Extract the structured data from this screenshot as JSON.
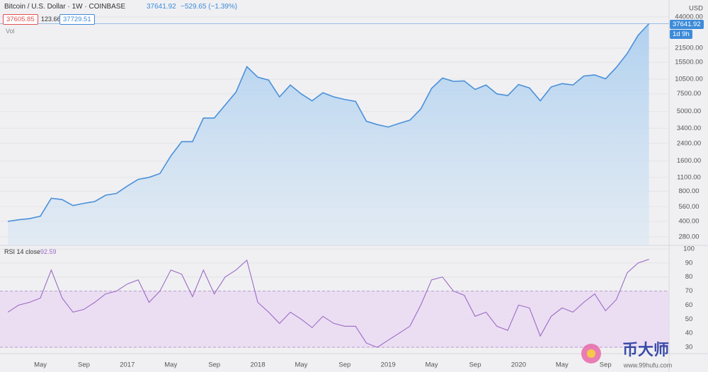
{
  "header": {
    "symbol": "Bitcoin / U.S. Dollar · 1W · COINBASE",
    "change": "−529.65 (−1.39%)",
    "bid": 37605.85,
    "spread": 123.66,
    "ask": 37729.51,
    "volume_label": "Vol",
    "countdown": "1d 9h",
    "currency": "USD"
  },
  "watermark": {
    "brand": "币大师",
    "url": "www.99hufu.com"
  },
  "chart_data": [
    {
      "type": "area",
      "log_scale": true,
      "color": "#4a90d9",
      "categories": [
        null,
        null,
        null,
        "May",
        null,
        null,
        null,
        "Sep",
        null,
        null,
        null,
        "2017",
        null,
        null,
        null,
        "May",
        null,
        null,
        null,
        "Sep",
        null,
        null,
        null,
        "2018",
        null,
        null,
        null,
        "May",
        null,
        null,
        null,
        "Sep",
        null,
        null,
        null,
        "2019",
        null,
        null,
        null,
        "May",
        null,
        null,
        null,
        "Sep",
        null,
        null,
        null,
        "2020",
        null,
        null,
        null,
        "May",
        null,
        null,
        null,
        "Sep",
        null,
        null,
        null,
        null
      ],
      "values": [
        400,
        415,
        425,
        450,
        680,
        660,
        575,
        605,
        630,
        730,
        760,
        900,
        1050,
        1100,
        1200,
        1800,
        2500,
        2500,
        4300,
        4300,
        5800,
        7800,
        14000,
        11000,
        10300,
        7000,
        9200,
        7500,
        6400,
        7700,
        7000,
        6600,
        6300,
        4000,
        3700,
        3500,
        3800,
        4100,
        5300,
        8500,
        10800,
        10000,
        10100,
        8300,
        9200,
        7500,
        7200,
        9300,
        8600,
        6400,
        8800,
        9500,
        9200,
        11300,
        11600,
        10600,
        13800,
        19000,
        28900,
        37641.92
      ],
      "ylim": [
        230,
        57000
      ],
      "yticks": [
        {
          "value": 280,
          "label": "280.00"
        },
        {
          "value": 400,
          "label": "400.00"
        },
        {
          "value": 560,
          "label": "560.00"
        },
        {
          "value": 800,
          "label": "800.00"
        },
        {
          "value": 1100,
          "label": "1100.00"
        },
        {
          "value": 1600,
          "label": "1600.00"
        },
        {
          "value": 2400,
          "label": "2400.00"
        },
        {
          "value": 3400,
          "label": "3400.00"
        },
        {
          "value": 5000,
          "label": "5000.00"
        },
        {
          "value": 7500,
          "label": "7500.00"
        },
        {
          "value": 10500,
          "label": "10500.00"
        },
        {
          "value": 15500,
          "label": "15500.00"
        },
        {
          "value": 21500,
          "label": "21500.00"
        },
        {
          "value": 44000,
          "label": "44000.00"
        }
      ]
    },
    {
      "type": "line",
      "title": "RSI 14 close",
      "color": "#9c6ac4",
      "band_color": "#ead9f2",
      "overbought": 70,
      "oversold": 30,
      "values": [
        55,
        60,
        62,
        65,
        85,
        65,
        55,
        57,
        62,
        68,
        70,
        75,
        78,
        62,
        70,
        85,
        82,
        66,
        85,
        68,
        80,
        85,
        92,
        62,
        55,
        47,
        55,
        50,
        44,
        52,
        47,
        45,
        45,
        33,
        30,
        35,
        40,
        45,
        60,
        78,
        80,
        70,
        67,
        52,
        55,
        45,
        42,
        60,
        58,
        38,
        52,
        58,
        55,
        62,
        68,
        56,
        64,
        83,
        90,
        92.59
      ],
      "ylim": [
        25.5,
        102.5
      ],
      "yticks": [
        30,
        40,
        50,
        60,
        70,
        80,
        90,
        100
      ]
    }
  ]
}
